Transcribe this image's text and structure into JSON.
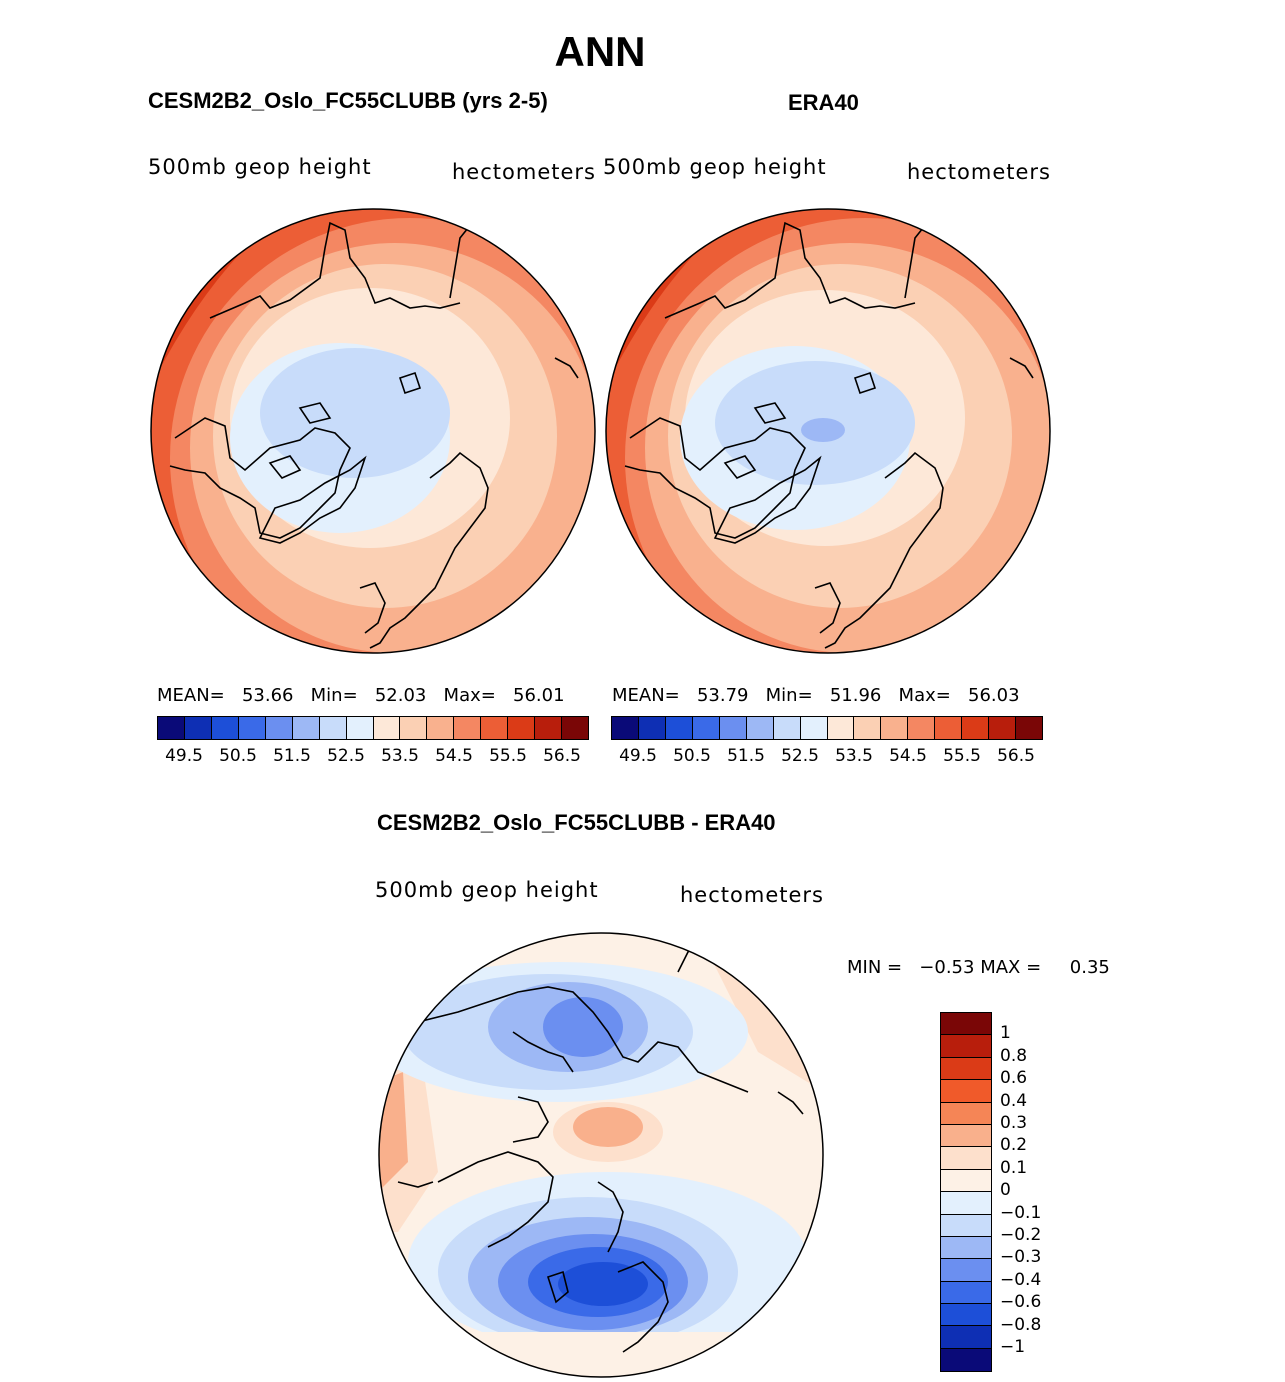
{
  "title": "ANN",
  "colors": {
    "seq": [
      "#0a0a78",
      "#0e2fb4",
      "#1d4fd8",
      "#3a6ae8",
      "#6b8ff0",
      "#9db8f5",
      "#c8dcfa",
      "#e3f0fd",
      "#fde8d8",
      "#fbd0b4",
      "#f9b18e",
      "#f48762",
      "#ec5e36",
      "#db3b17",
      "#b81e0c",
      "#7a0606"
    ],
    "diff": [
      "#7a0606",
      "#b81e0c",
      "#db3b17",
      "#f05a2a",
      "#f58556",
      "#f9b08c",
      "#fde0cc",
      "#fdf1e6",
      "#e3f0fd",
      "#c8dcfa",
      "#9db8f5",
      "#6b8ff0",
      "#3a6ae8",
      "#1d4fd8",
      "#0e2fb4",
      "#0a0a78"
    ]
  },
  "panels": {
    "model": {
      "title": "CESM2B2_Oslo_FC55CLUBB (yrs 2-5)",
      "field": "500mb geop height",
      "units": "hectometers",
      "mean_label": "MEAN=",
      "mean": "53.66",
      "min_label": "Min=",
      "min": "52.03",
      "max_label": "Max=",
      "max": "56.01"
    },
    "obs": {
      "title": "ERA40",
      "field": "500mb geop height",
      "units": "hectometers",
      "mean_label": "MEAN=",
      "mean": "53.79",
      "min_label": "Min=",
      "min": "51.96",
      "max_label": "Max=",
      "max": "56.03"
    },
    "diff": {
      "title": "CESM2B2_Oslo_FC55CLUBB - ERA40",
      "field": "500mb geop height",
      "units": "hectometers",
      "min_label": "MIN =",
      "min": "−0.53",
      "max_label": "MAX =",
      "max": "0.35"
    }
  },
  "colorbar_ticks": [
    "49.5",
    "50.5",
    "51.5",
    "52.5",
    "53.5",
    "54.5",
    "55.5",
    "56.5"
  ],
  "diff_colorbar_ticks": [
    "1",
    "0.8",
    "0.6",
    "0.4",
    "0.3",
    "0.2",
    "0.1",
    "0",
    "−0.1",
    "−0.2",
    "−0.3",
    "−0.4",
    "−0.6",
    "−0.8",
    "−1"
  ]
}
